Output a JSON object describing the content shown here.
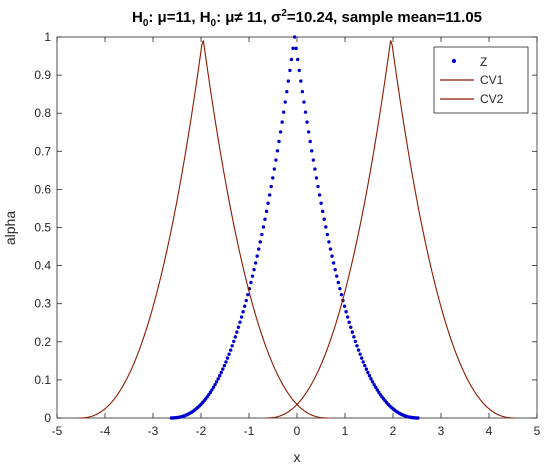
{
  "chart_data": {
    "type": "line",
    "title_parts": {
      "h0a_prefix": "H",
      "h0a_sub": "0",
      "h0a_rest": ": μ=11, ",
      "h0b_prefix": "H",
      "h0b_sub": "0",
      "h0b_rest": ": μ≠ 11,  σ",
      "sigma_sup": "2",
      "tail": "=10.24,  sample mean=11.05"
    },
    "xlabel": "x",
    "ylabel": "alpha",
    "xlim": [
      -5,
      5
    ],
    "ylim": [
      0,
      1
    ],
    "x_ticks": [
      "-5",
      "-4",
      "-3",
      "-2",
      "-1",
      "0",
      "1",
      "2",
      "3",
      "4",
      "5"
    ],
    "y_ticks": [
      "0",
      "0.1",
      "0.2",
      "0.3",
      "0.4",
      "0.5",
      "0.6",
      "0.7",
      "0.8",
      "0.9",
      "1"
    ],
    "grid": false,
    "legend_position": "top-right",
    "series": [
      {
        "name": "Z",
        "style": "dots",
        "color": "#0000cc",
        "center": -0.05,
        "left_foot": -2.65,
        "right_foot": 2.55
      },
      {
        "name": "CV1",
        "style": "line",
        "color": "#8b1a00",
        "center": -1.96,
        "left_foot": -4.55,
        "right_foot": 0.65
      },
      {
        "name": "CV2",
        "style": "line",
        "color": "#8b1a00",
        "center": 1.96,
        "left_foot": -0.65,
        "right_foot": 4.55
      }
    ]
  }
}
